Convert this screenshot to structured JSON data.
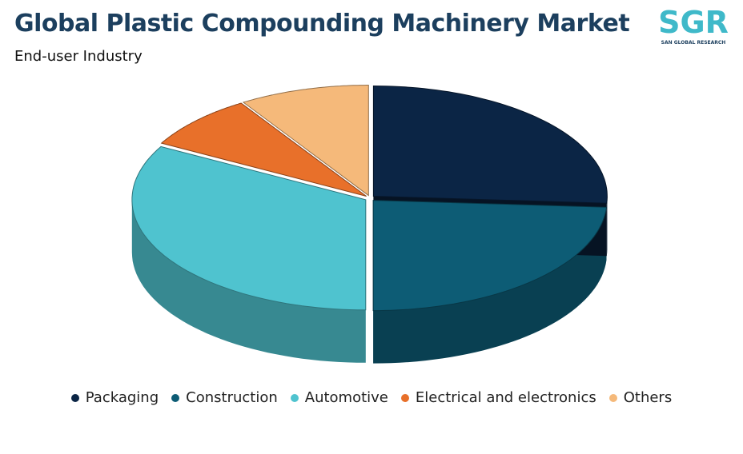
{
  "chart_data": {
    "type": "pie",
    "title": "Global Plastic Compounding Machinery Market",
    "subtitle": "End-user Industry",
    "categories": [
      "Packaging",
      "Construction",
      "Automotive",
      "Electrical and electronics",
      "Others"
    ],
    "values": [
      26,
      24,
      33,
      8,
      9
    ],
    "colors": [
      "#0b2545",
      "#0d5c75",
      "#4fc3cf",
      "#e8702a",
      "#f5b97a"
    ],
    "legend": "bottom"
  },
  "logo": {
    "mark": "SGR",
    "name": "SAN GLOBAL RESEARCH"
  }
}
